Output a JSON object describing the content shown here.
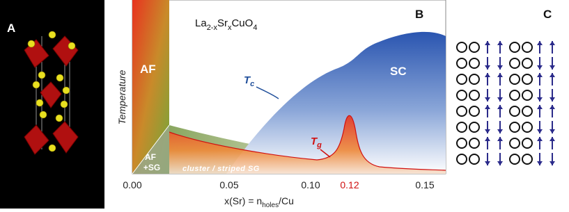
{
  "panel_a": {
    "label": "A"
  },
  "panel_b": {
    "label": "B",
    "formula": [
      "La",
      "2-x",
      "Sr",
      "x",
      "CuO",
      "4"
    ],
    "y_label": "Temperature",
    "x_label": [
      "x(Sr) = n",
      "holes",
      "/Cu"
    ],
    "x_ticks": [
      "0.00",
      "0.05",
      "0.10",
      "0.12",
      "0.15"
    ],
    "regions": {
      "af": "AF",
      "af_sg": [
        "AF",
        "+SG"
      ],
      "sg": "cluster / striped SG",
      "sc": "SC"
    },
    "tc": [
      "T",
      "c"
    ],
    "tg": [
      "T",
      "g"
    ]
  },
  "panel_c": {
    "label": "C"
  }
}
